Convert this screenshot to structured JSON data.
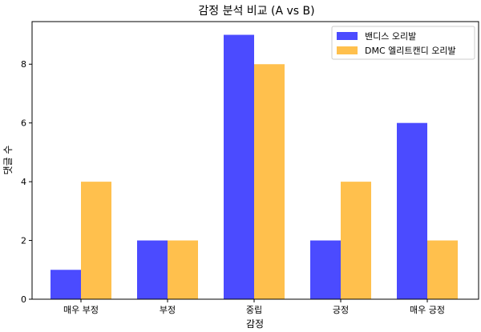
{
  "chart_data": {
    "type": "bar",
    "title": "감정 분석 비교 (A vs B)",
    "xlabel": "감정",
    "ylabel": "댓글 수",
    "categories": [
      "매우 부정",
      "부정",
      "중립",
      "긍정",
      "매우 긍정"
    ],
    "series": [
      {
        "name": "밴디스 오리발",
        "color": "#4b4bff",
        "values": [
          1,
          2,
          9,
          2,
          6
        ]
      },
      {
        "name": "DMC 엘리트캔디 오리발",
        "color": "#ffc04d",
        "values": [
          4,
          2,
          8,
          4,
          2
        ]
      }
    ],
    "ylim": [
      0,
      9.45
    ],
    "yticks": [
      0,
      2,
      4,
      6,
      8
    ],
    "grid": false,
    "legend_position": "top-right"
  }
}
